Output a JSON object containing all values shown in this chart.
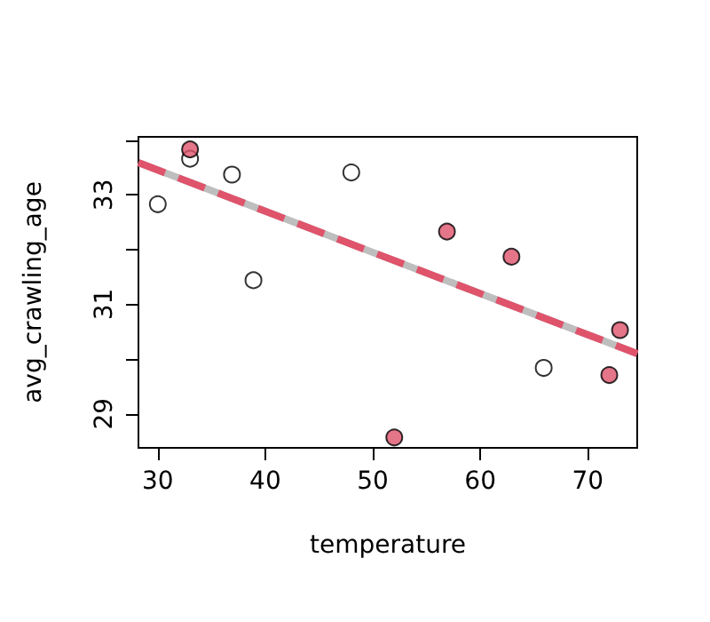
{
  "chart_data": {
    "type": "scatter",
    "xlabel": "temperature",
    "ylabel": "avg_crawling_age",
    "xlim": [
      28.2,
      74.6
    ],
    "ylim": [
      28.38,
      34.06
    ],
    "xticks": [
      30,
      40,
      50,
      60,
      70
    ],
    "yticks": [
      29,
      {
        "value": 30,
        "label": null
      },
      31,
      {
        "value": 32,
        "label": null
      },
      33,
      {
        "value": 34,
        "label": null
      }
    ],
    "grid": false,
    "marker": "circle",
    "series": [
      {
        "color": "#ffffff",
        "x": [
          30,
          33,
          36.9,
          38.9,
          48,
          65.9
        ],
        "values": [
          32.83,
          33.66,
          33.37,
          31.44,
          33.41,
          29.84
        ]
      },
      {
        "color": "#df536b",
        "x": [
          33,
          52,
          56.9,
          62.9,
          72,
          73
        ],
        "values": [
          33.83,
          28.57,
          32.33,
          31.87,
          29.71,
          30.53
        ]
      },
      {
        "type": "line",
        "color": "#bebebe",
        "line_style": "solid",
        "marker": "none",
        "x": [
          28.2,
          74.6
        ],
        "values": [
          33.59,
          30.1
        ]
      },
      {
        "type": "line",
        "color": "#df536b",
        "line_style": "dashed",
        "marker": "none",
        "x": [
          28.2,
          74.6
        ],
        "values": [
          33.59,
          30.1
        ]
      }
    ]
  }
}
